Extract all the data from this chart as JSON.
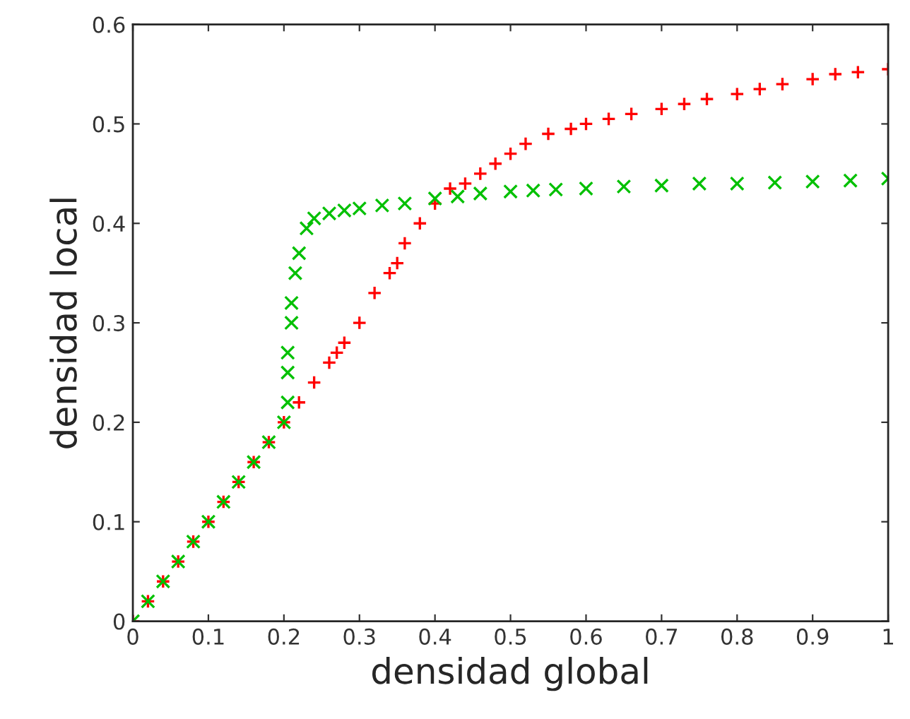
{
  "chart_data": {
    "type": "scatter",
    "xlabel": "densidad global",
    "ylabel": "densidad local",
    "xlim": [
      0,
      1
    ],
    "ylim": [
      0,
      0.6
    ],
    "xticks": [
      0,
      0.1,
      0.2,
      0.3,
      0.4,
      0.5,
      0.6,
      0.7,
      0.8,
      0.9,
      1
    ],
    "yticks": [
      0,
      0.1,
      0.2,
      0.3,
      0.4,
      0.5,
      0.6
    ],
    "grid": false,
    "legend": false,
    "series": [
      {
        "color": "#ff0000",
        "marker": "cross",
        "x": [
          0,
          0.02,
          0.04,
          0.06,
          0.08,
          0.1,
          0.12,
          0.14,
          0.16,
          0.18,
          0.2,
          0.22,
          0.24,
          0.26,
          0.27,
          0.28,
          0.3,
          0.32,
          0.34,
          0.35,
          0.36,
          0.38,
          0.4,
          0.42,
          0.44,
          0.46,
          0.48,
          0.5,
          0.52,
          0.55,
          0.58,
          0.6,
          0.63,
          0.66,
          0.7,
          0.73,
          0.76,
          0.8,
          0.83,
          0.86,
          0.9,
          0.93,
          0.96,
          1
        ],
        "values": [
          0,
          0.02,
          0.04,
          0.06,
          0.08,
          0.1,
          0.12,
          0.14,
          0.16,
          0.18,
          0.2,
          0.22,
          0.24,
          0.26,
          0.27,
          0.28,
          0.3,
          0.33,
          0.35,
          0.36,
          0.38,
          0.4,
          0.42,
          0.435,
          0.44,
          0.45,
          0.46,
          0.47,
          0.48,
          0.49,
          0.495,
          0.5,
          0.505,
          0.51,
          0.515,
          0.52,
          0.525,
          0.53,
          0.535,
          0.54,
          0.545,
          0.55,
          0.552,
          0.555
        ]
      },
      {
        "color": "#00c000",
        "marker": "cross",
        "x": [
          0,
          0.02,
          0.04,
          0.06,
          0.08,
          0.1,
          0.12,
          0.14,
          0.16,
          0.18,
          0.2,
          0.205,
          0.205,
          0.205,
          0.21,
          0.21,
          0.215,
          0.22,
          0.23,
          0.24,
          0.26,
          0.28,
          0.3,
          0.33,
          0.36,
          0.4,
          0.43,
          0.46,
          0.5,
          0.53,
          0.56,
          0.6,
          0.65,
          0.7,
          0.75,
          0.8,
          0.85,
          0.9,
          0.95,
          1
        ],
        "values": [
          0,
          0.02,
          0.04,
          0.06,
          0.08,
          0.1,
          0.12,
          0.14,
          0.16,
          0.18,
          0.2,
          0.22,
          0.25,
          0.27,
          0.3,
          0.32,
          0.35,
          0.37,
          0.395,
          0.405,
          0.41,
          0.413,
          0.415,
          0.418,
          0.42,
          0.425,
          0.427,
          0.43,
          0.432,
          0.433,
          0.434,
          0.435,
          0.437,
          0.438,
          0.44,
          0.44,
          0.441,
          0.442,
          0.443,
          0.445
        ]
      }
    ]
  }
}
